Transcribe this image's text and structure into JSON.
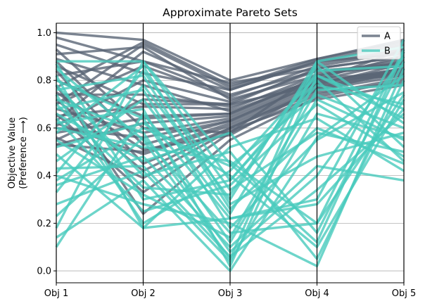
{
  "chart_data": {
    "type": "line",
    "title": "Approximate Pareto Sets",
    "ylabel_line1": "Objective Value",
    "ylabel_line2": "(Preference ⟶)",
    "categories": [
      "Obj 1",
      "Obj 2",
      "Obj 3",
      "Obj 4",
      "Obj 5"
    ],
    "ylim": [
      -0.05,
      1.04
    ],
    "yticks": [
      "0.0",
      "0.2",
      "0.4",
      "0.6",
      "0.8",
      "1.0"
    ],
    "grid": "horizontal",
    "legend_position": "top-right",
    "series": [
      {
        "name": "A",
        "color": "#5a6575",
        "lines": [
          [
            1.0,
            0.97,
            0.8,
            0.89,
            0.97
          ],
          [
            0.98,
            0.88,
            0.79,
            0.85,
            0.9
          ],
          [
            0.95,
            0.83,
            0.76,
            0.88,
            0.95
          ],
          [
            0.93,
            0.6,
            0.58,
            0.83,
            0.86
          ],
          [
            0.91,
            0.94,
            0.72,
            0.82,
            0.88
          ],
          [
            0.89,
            0.78,
            0.67,
            0.8,
            0.93
          ],
          [
            0.88,
            0.53,
            0.63,
            0.79,
            0.85
          ],
          [
            0.86,
            0.7,
            0.7,
            0.78,
            0.84
          ],
          [
            0.84,
            0.45,
            0.6,
            0.76,
            0.82
          ],
          [
            0.82,
            0.88,
            0.74,
            0.84,
            0.87
          ],
          [
            0.8,
            0.65,
            0.66,
            0.81,
            0.9
          ],
          [
            0.78,
            0.24,
            0.55,
            0.73,
            0.8
          ],
          [
            0.77,
            0.96,
            0.78,
            0.87,
            0.93
          ],
          [
            0.75,
            0.51,
            0.57,
            0.77,
            0.83
          ],
          [
            0.74,
            0.74,
            0.69,
            0.8,
            0.88
          ],
          [
            0.72,
            0.42,
            0.6,
            0.75,
            0.79
          ],
          [
            0.7,
            0.86,
            0.73,
            0.86,
            0.92
          ],
          [
            0.68,
            0.58,
            0.64,
            0.79,
            0.85
          ],
          [
            0.66,
            0.33,
            0.58,
            0.74,
            0.81
          ],
          [
            0.65,
            0.69,
            0.68,
            0.82,
            0.89
          ],
          [
            0.63,
            0.92,
            0.76,
            0.88,
            0.91
          ],
          [
            0.62,
            0.49,
            0.61,
            0.76,
            0.84
          ],
          [
            0.61,
            0.8,
            0.71,
            0.84,
            0.86
          ],
          [
            0.6,
            0.56,
            0.63,
            0.78,
            0.87
          ],
          [
            0.58,
            0.64,
            0.66,
            0.81,
            0.83
          ],
          [
            0.56,
            0.39,
            0.59,
            0.72,
            0.78
          ],
          [
            0.55,
            0.72,
            0.7,
            0.85,
            0.9
          ],
          [
            0.53,
            0.5,
            0.62,
            0.77,
            0.85
          ],
          [
            0.53,
            0.62,
            0.65,
            0.8,
            0.82
          ],
          [
            0.7,
            0.95,
            0.77,
            0.89,
            0.96
          ]
        ]
      },
      {
        "name": "B",
        "color": "#48cbbd",
        "lines": [
          [
            0.88,
            0.88,
            0.45,
            0.12,
            0.92
          ],
          [
            0.87,
            0.3,
            0.38,
            0.78,
            0.7
          ],
          [
            0.85,
            0.55,
            0.05,
            0.88,
            0.62
          ],
          [
            0.82,
            0.18,
            0.22,
            0.3,
            0.97
          ],
          [
            0.8,
            0.64,
            0.12,
            0.72,
            0.55
          ],
          [
            0.78,
            0.4,
            0.5,
            0.05,
            0.8
          ],
          [
            0.76,
            0.82,
            0.26,
            0.6,
            0.45
          ],
          [
            0.74,
            0.2,
            0.42,
            0.82,
            0.68
          ],
          [
            0.72,
            0.58,
            0.08,
            0.4,
            0.9
          ],
          [
            0.7,
            0.35,
            0.32,
            0.86,
            0.52
          ],
          [
            0.68,
            0.76,
            0.18,
            0.55,
            0.75
          ],
          [
            0.66,
            0.46,
            0.58,
            0.16,
            0.88
          ],
          [
            0.64,
            0.25,
            0.36,
            0.7,
            0.48
          ],
          [
            0.62,
            0.68,
            0.02,
            0.82,
            0.64
          ],
          [
            0.6,
            0.52,
            0.46,
            0.2,
            0.93
          ],
          [
            0.58,
            0.86,
            0.28,
            0.48,
            0.58
          ],
          [
            0.55,
            0.32,
            0.14,
            0.76,
            0.78
          ],
          [
            0.52,
            0.62,
            0.4,
            0.1,
            0.72
          ],
          [
            0.49,
            0.18,
            0.52,
            0.64,
            0.42
          ],
          [
            0.46,
            0.72,
            0.24,
            0.84,
            0.86
          ],
          [
            0.43,
            0.44,
            0.06,
            0.34,
            0.66
          ],
          [
            0.41,
            0.84,
            0.34,
            0.58,
            0.5
          ],
          [
            0.4,
            0.28,
            0.2,
            0.02,
            0.85
          ],
          [
            0.38,
            0.6,
            0.44,
            0.74,
            0.6
          ],
          [
            0.36,
            0.48,
            0.1,
            0.44,
            0.38
          ],
          [
            0.33,
            0.78,
            0.3,
            0.88,
            0.94
          ],
          [
            0.28,
            0.42,
            0.04,
            0.66,
            0.56
          ],
          [
            0.23,
            0.56,
            0.16,
            0.2,
            0.74
          ],
          [
            0.18,
            0.88,
            0.38,
            0.8,
            0.46
          ],
          [
            0.14,
            0.38,
            0.0,
            0.56,
            0.82
          ],
          [
            0.1,
            0.66,
            0.22,
            0.28,
            0.68
          ]
        ]
      }
    ]
  }
}
